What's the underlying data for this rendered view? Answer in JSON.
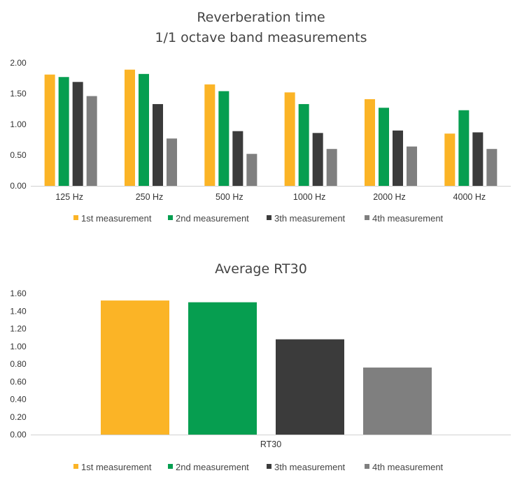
{
  "colors": {
    "series": [
      "#fbb426",
      "#069e50",
      "#3b3b3b",
      "#7f7f7f"
    ],
    "axis": "#d0d0d0",
    "text": "#333333"
  },
  "chart_data": [
    {
      "type": "bar",
      "title": [
        "Reverberation time",
        "1/1 octave band measurements"
      ],
      "xlabel": "",
      "ylabel": "",
      "categories": [
        "125 Hz",
        "250 Hz",
        "500 Hz",
        "1000 Hz",
        "2000 Hz",
        "4000 Hz"
      ],
      "ylim": [
        0,
        2.0
      ],
      "yticks": [
        "0.00",
        "0.50",
        "1.00",
        "1.50",
        "2.00"
      ],
      "grid": false,
      "legend_position": "bottom",
      "series": [
        {
          "name": "1st measurement",
          "values": [
            1.81,
            1.89,
            1.65,
            1.52,
            1.41,
            0.85
          ]
        },
        {
          "name": "2nd measurement",
          "values": [
            1.77,
            1.82,
            1.54,
            1.33,
            1.27,
            1.23
          ]
        },
        {
          "name": "3th measurement",
          "values": [
            1.69,
            1.33,
            0.89,
            0.86,
            0.9,
            0.87
          ]
        },
        {
          "name": "4th measurement",
          "values": [
            1.46,
            0.77,
            0.52,
            0.6,
            0.64,
            0.6
          ]
        }
      ]
    },
    {
      "type": "bar",
      "title": [
        "Average RT30"
      ],
      "xlabel": "",
      "ylabel": "",
      "categories": [
        "RT30"
      ],
      "ylim": [
        0,
        1.6
      ],
      "yticks": [
        "0.00",
        "0.20",
        "0.40",
        "0.60",
        "0.80",
        "1.00",
        "1.20",
        "1.40",
        "1.60"
      ],
      "grid": false,
      "legend_position": "bottom",
      "series": [
        {
          "name": "1st measurement",
          "values": [
            1.52
          ]
        },
        {
          "name": "2nd measurement",
          "values": [
            1.5
          ]
        },
        {
          "name": "3th measurement",
          "values": [
            1.08
          ]
        },
        {
          "name": "4th measurement",
          "values": [
            0.76
          ]
        }
      ]
    }
  ]
}
